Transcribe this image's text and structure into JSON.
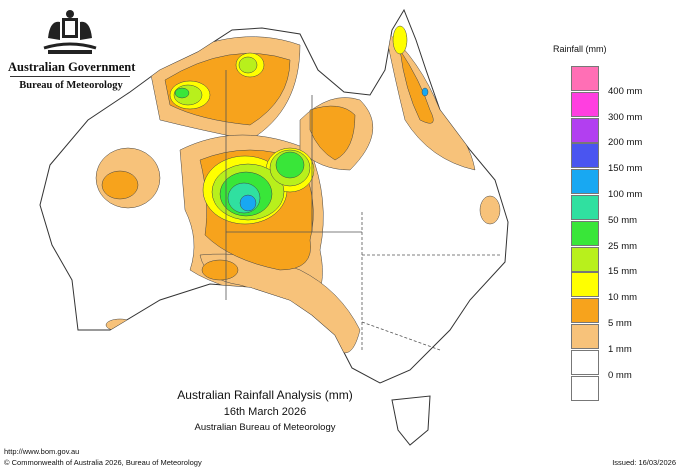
{
  "header": {
    "agency": "Australian Government",
    "bureau": "Bureau of Meteorology"
  },
  "legend": {
    "title": "Rainfall (mm)",
    "items": [
      {
        "label": "",
        "color": "#ff6fb5"
      },
      {
        "label": "400 mm",
        "color": "#ff3fe0"
      },
      {
        "label": "300 mm",
        "color": "#b23ff0"
      },
      {
        "label": "200 mm",
        "color": "#4a55f0"
      },
      {
        "label": "150 mm",
        "color": "#18a8f2"
      },
      {
        "label": "100 mm",
        "color": "#30e0a0"
      },
      {
        "label": "50 mm",
        "color": "#39e639"
      },
      {
        "label": "25 mm",
        "color": "#b8f01c"
      },
      {
        "label": "15 mm",
        "color": "#ffff00"
      },
      {
        "label": "10 mm",
        "color": "#f7a31c"
      },
      {
        "label": "5 mm",
        "color": "#f7c27a"
      },
      {
        "label": "1 mm",
        "color": "#ffffff"
      },
      {
        "label": "0 mm",
        "color": "#ffffff"
      }
    ]
  },
  "caption": {
    "title": "Australian Rainfall Analysis (mm)",
    "date": "16th March 2026",
    "org": "Australian Bureau of Meteorology"
  },
  "footer": {
    "url": "http://www.bom.gov.au",
    "copyright": "© Commonwealth of Australia 2026, Bureau of Meteorology",
    "issued": "Issued: 16/03/2026"
  },
  "map": {
    "region": "Australia",
    "colors": {
      "c1": "#f7c27a",
      "c5": "#f7a31c",
      "c10": "#ffff00",
      "c15": "#b8f01c",
      "c25": "#39e639",
      "c50": "#30e0a0",
      "c100": "#18a8f2",
      "c150": "#4a55f0"
    }
  }
}
